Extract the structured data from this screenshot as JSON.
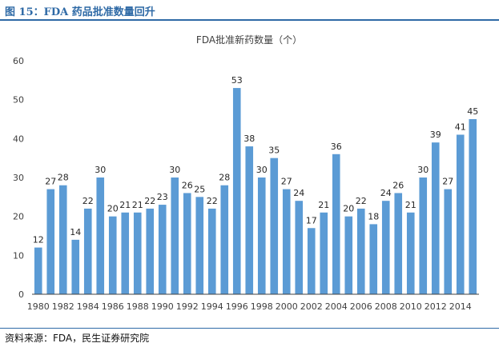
{
  "header": {
    "figure_title": "图 15：FDA 药品批准数量回升"
  },
  "source": "资料来源：FDA，民生证券研究院",
  "colors": {
    "bar": "#5b9bd5",
    "header": "#2f6aa6",
    "axis": "#404040",
    "grid": "#d9d9d9"
  },
  "chart_data": {
    "type": "bar",
    "title": "FDA批准新药数量（个）",
    "xlabel": "",
    "ylabel": "",
    "ylim": [
      0,
      60
    ],
    "yticks": [
      0,
      10,
      20,
      30,
      40,
      50,
      60
    ],
    "grid": false,
    "categories": [
      "1980",
      "1981",
      "1982",
      "1983",
      "1984",
      "1985",
      "1986",
      "1987",
      "1988",
      "1989",
      "1990",
      "1991",
      "1992",
      "1993",
      "1994",
      "1995",
      "1996",
      "1997",
      "1998",
      "1999",
      "2000",
      "2001",
      "2002",
      "2003",
      "2004",
      "2005",
      "2006",
      "2007",
      "2008",
      "2009",
      "2010",
      "2011",
      "2012",
      "2013",
      "2014",
      "2015"
    ],
    "xtick_labels": [
      "1980",
      "1982",
      "1984",
      "1986",
      "1988",
      "1990",
      "1992",
      "1994",
      "1996",
      "1998",
      "2000",
      "2002",
      "2004",
      "2006",
      "2008",
      "2010",
      "2012",
      "2014"
    ],
    "values": [
      12,
      27,
      28,
      14,
      22,
      30,
      20,
      21,
      21,
      22,
      23,
      30,
      26,
      25,
      22,
      28,
      53,
      38,
      30,
      35,
      27,
      24,
      17,
      21,
      36,
      20,
      22,
      18,
      24,
      26,
      21,
      30,
      39,
      27,
      41,
      45
    ]
  }
}
